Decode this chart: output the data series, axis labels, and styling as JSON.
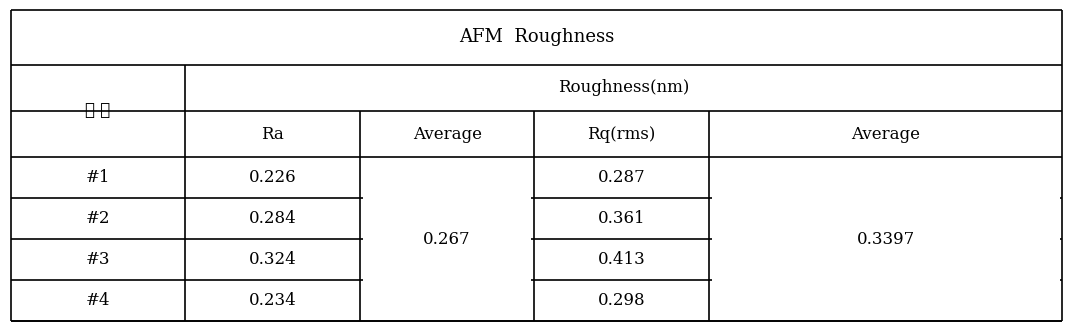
{
  "title": "AFM  Roughness",
  "header_roughness": "Roughness(nm)",
  "col_headers": [
    "Ra",
    "Average",
    "Rq(rms)",
    "Average"
  ],
  "row_labels": [
    "#1",
    "#2",
    "#3",
    "#4"
  ],
  "ra_values": [
    "0.226",
    "0.284",
    "0.324",
    "0.234"
  ],
  "ra_average": "0.267",
  "rq_values": [
    "0.287",
    "0.361",
    "0.413",
    "0.298"
  ],
  "rq_average": "0.3397",
  "sample_label": "시 료",
  "bg_color": "#ffffff",
  "line_color": "#000000",
  "text_color": "#000000",
  "font_size": 12,
  "title_font_size": 13,
  "figwidth": 10.73,
  "figheight": 3.31,
  "dpi": 100
}
